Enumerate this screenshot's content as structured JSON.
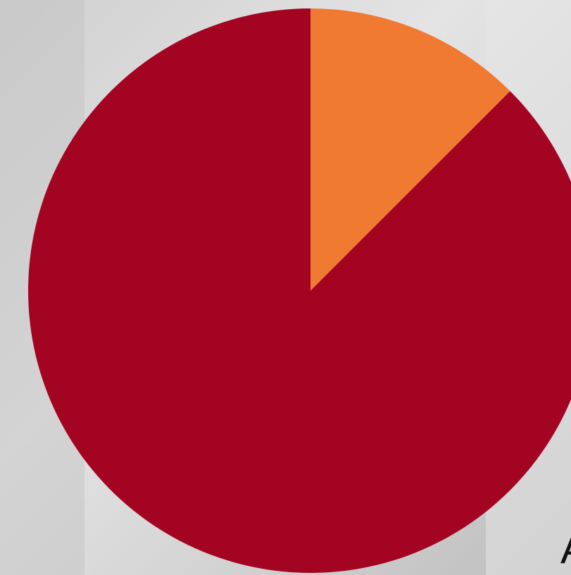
{
  "chart_data": {
    "type": "pie",
    "categories": [
      null,
      null
    ],
    "values": [
      12.5,
      87.5
    ],
    "colors": [
      "#f07a32",
      "#a30421"
    ],
    "start_angle": 0,
    "direction": "clockwise",
    "annotation": "A"
  }
}
